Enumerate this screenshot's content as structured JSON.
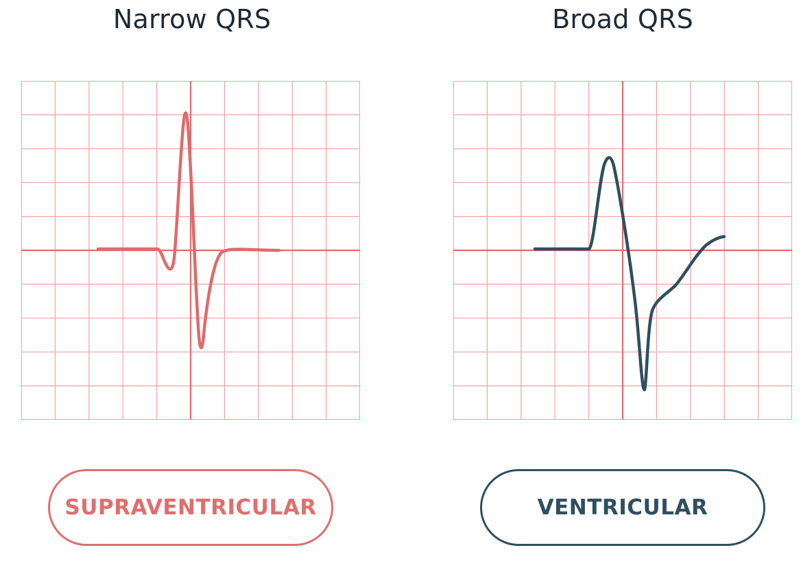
{
  "colors": {
    "grid_light": "#f0a3a3",
    "grid_axis": "#df6d6d",
    "trace_narrow": "#de6b6b",
    "trace_broad": "#2f4f5f",
    "title_text": "#1e2a36"
  },
  "panels": [
    {
      "title": "Narrow QRS",
      "button_label": "SUPRAVENTRICULAR",
      "trace_color": "#de6b6b"
    },
    {
      "title": "Broad QRS",
      "button_label": "VENTRICULAR",
      "trace_color": "#2f4f5f"
    }
  ]
}
